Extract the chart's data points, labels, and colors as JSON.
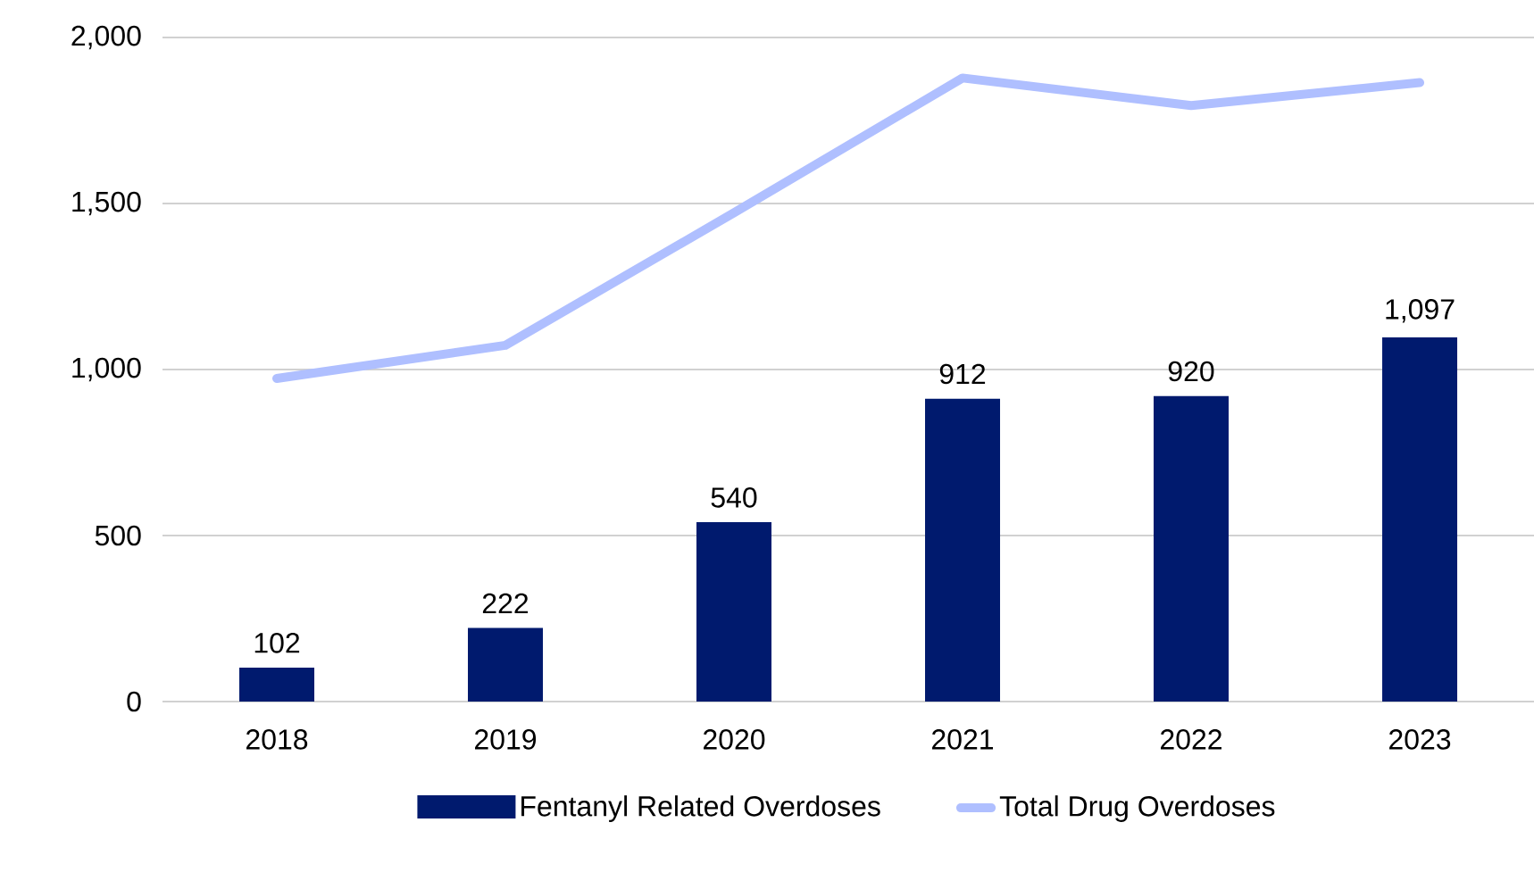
{
  "chart_data": {
    "type": "bar",
    "categories": [
      "2018",
      "2019",
      "2020",
      "2021",
      "2022",
      "2023"
    ],
    "series": [
      {
        "name": "Fentanyl Related Overdoses",
        "color": "#001a6e",
        "values": [
          102,
          222,
          540,
          912,
          920,
          1097
        ],
        "value_labels": [
          "102",
          "222",
          "540",
          "912",
          "920",
          "1,097"
        ]
      },
      {
        "name": "Total Drug Overdoses",
        "type": "line",
        "color": "#afbfff",
        "values": [
          973,
          1073,
          1472,
          1878,
          1795,
          1864
        ]
      }
    ],
    "ylim": [
      0,
      2000
    ],
    "yticks": [
      0,
      500,
      {
        "value": 1000,
        "label": "1,000"
      },
      {
        "value": 1500,
        "label": "1,500"
      },
      {
        "value": 2000,
        "label": "2,000"
      }
    ],
    "grid": "y",
    "legend": "bottom"
  }
}
